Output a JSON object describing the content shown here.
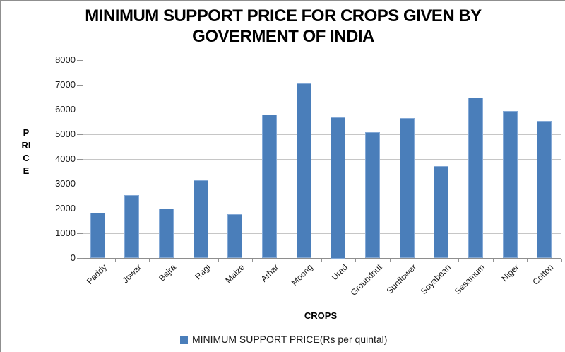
{
  "window": {
    "background": "#ffffff",
    "border_color": "#8f8f8f"
  },
  "chart_data": {
    "type": "bar",
    "title": "MINIMUM SUPPORT PRICE FOR CROPS GIVEN BY GOVERMENT OF INDIA",
    "title_line1": "MINIMUM SUPPORT PRICE FOR CROPS GIVEN BY",
    "title_line2": "GOVERMENT OF INDIA",
    "categories": [
      "Paddy",
      "Jowar",
      "Bajra",
      "Ragi",
      "Maize",
      "Arhar",
      "Moong",
      "Urad",
      "Groundnut",
      "Sunflower",
      "Soyabean",
      "Sesamum",
      "Niger",
      "Cotton"
    ],
    "values": [
      1815,
      2550,
      2000,
      3150,
      1760,
      5800,
      7050,
      5700,
      5090,
      5650,
      3710,
      6485,
      5940,
      5550
    ],
    "series_name": "MINIMUM SUPPORT PRICE(Rs per quintal)",
    "xlabel": "CROPS",
    "ylabel": "PRICE",
    "ylim": [
      0,
      8000
    ],
    "yticks": [
      "0",
      "1000",
      "2000",
      "3000",
      "4000",
      "5000",
      "6000",
      "7000",
      "8000"
    ],
    "gridlines_at": [
      1000,
      3000,
      4000,
      5000,
      6000
    ],
    "legend_position": "bottom",
    "bar_color": "#4a7eba",
    "bar_edge_color": "#84a9d6",
    "grid_color": "#c6c6c6",
    "axis_color": "#8e8e8e"
  }
}
